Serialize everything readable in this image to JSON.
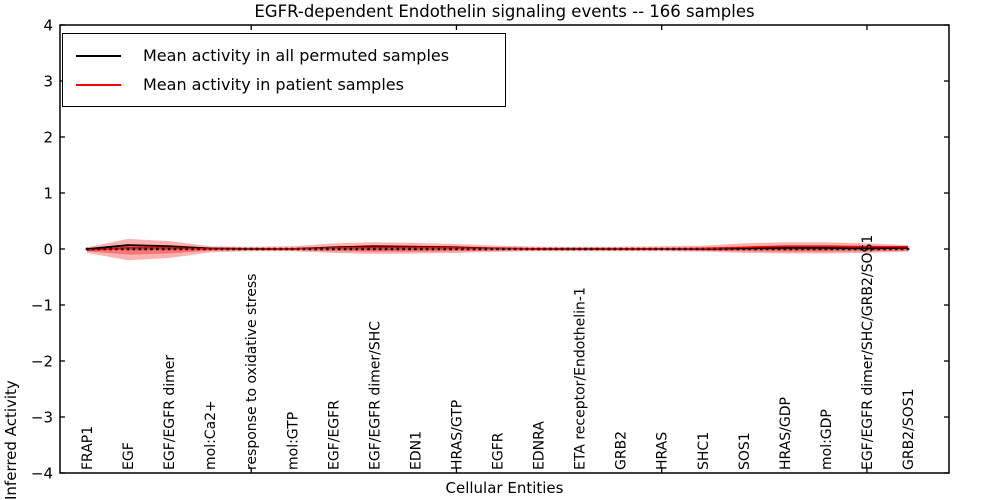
{
  "title": "EGFR-dependent Endothelin signaling events -- 166 samples",
  "legend": {
    "items": [
      {
        "label": "Mean activity in all permuted samples",
        "color": "#000000"
      },
      {
        "label": "Mean activity in patient samples",
        "color": "#ff0000"
      }
    ],
    "position": "upper left"
  },
  "chart_data": {
    "type": "line",
    "title": "EGFR-dependent Endothelin signaling events -- 166 samples",
    "xlabel": "Cellular Entities",
    "ylabel": "Inferred Activity",
    "ylim": [
      -4,
      4
    ],
    "grid": false,
    "yticks": [
      {
        "label": "4",
        "value": 4
      },
      {
        "label": "3",
        "value": 3
      },
      {
        "label": "2",
        "value": 2
      },
      {
        "label": "1",
        "value": 1
      },
      {
        "label": "0",
        "value": 0
      },
      {
        "label": "−1",
        "value": -1
      },
      {
        "label": "−2",
        "value": -2
      },
      {
        "label": "−3",
        "value": -3
      },
      {
        "label": "−4",
        "value": -4
      }
    ],
    "categories": [
      "FRAP1",
      "EGF",
      "EGF/EGFR dimer",
      "mol:Ca2+",
      "response to oxidative stress",
      "mol:GTP",
      "EGF/EGFR",
      "EGF/EGFR dimer/SHC",
      "EDN1",
      "HRAS/GTP",
      "EGFR",
      "EDNRA",
      "ETA receptor/Endothelin-1",
      "GRB2",
      "HRAS",
      "SHC1",
      "SOS1",
      "HRAS/GDP",
      "mol:GDP",
      "EGF/EGFR dimer/SHC/GRB2/SOS1",
      "GRB2/SOS1"
    ],
    "points_per_category_gap": 7,
    "points_total": 141,
    "xtick_point_indices": [
      28,
      63,
      98,
      133
    ],
    "series": [
      {
        "name": "Mean activity in all permuted samples",
        "color": "#000000",
        "values": [
          0.0,
          0.07,
          0.05,
          0.01,
          0.0,
          0.0,
          0.03,
          0.05,
          0.04,
          0.03,
          0.01,
          0.0,
          0.0,
          0.0,
          0.0,
          0.0,
          0.01,
          0.02,
          0.02,
          0.01,
          0.02
        ]
      },
      {
        "name": "Mean activity in patient samples",
        "color": "#ff0000",
        "values": [
          -0.02,
          0.02,
          0.02,
          0.0,
          0.0,
          0.0,
          0.02,
          0.03,
          0.03,
          0.02,
          0.01,
          0.0,
          0.0,
          0.0,
          0.0,
          0.01,
          0.03,
          0.05,
          0.05,
          0.04,
          0.04
        ]
      }
    ],
    "bands": [
      {
        "name": "patient-spread-outer",
        "color": "#ff0000",
        "opacity": 0.3,
        "upper": [
          0.03,
          0.18,
          0.14,
          0.05,
          0.04,
          0.05,
          0.1,
          0.12,
          0.11,
          0.09,
          0.06,
          0.04,
          0.04,
          0.04,
          0.05,
          0.06,
          0.1,
          0.12,
          0.12,
          0.1,
          0.07
        ],
        "lower": [
          -0.07,
          -0.2,
          -0.16,
          -0.06,
          -0.04,
          -0.04,
          -0.07,
          -0.09,
          -0.08,
          -0.07,
          -0.05,
          -0.04,
          -0.04,
          -0.04,
          -0.04,
          -0.05,
          -0.07,
          -0.08,
          -0.08,
          -0.07,
          -0.05
        ]
      },
      {
        "name": "patient-spread-inner",
        "color": "#ff0000",
        "opacity": 0.35,
        "upper": [
          0.01,
          0.09,
          0.07,
          0.03,
          0.02,
          0.02,
          0.05,
          0.07,
          0.06,
          0.05,
          0.03,
          0.02,
          0.02,
          0.02,
          0.02,
          0.03,
          0.05,
          0.07,
          0.07,
          0.06,
          0.05
        ],
        "lower": [
          -0.04,
          -0.1,
          -0.08,
          -0.03,
          -0.02,
          -0.02,
          -0.04,
          -0.05,
          -0.05,
          -0.04,
          -0.03,
          -0.02,
          -0.02,
          -0.02,
          -0.02,
          -0.03,
          -0.04,
          -0.05,
          -0.05,
          -0.04,
          -0.03
        ]
      },
      {
        "name": "permuted-spread",
        "color": "#000000",
        "opacity": 0.25,
        "upper": [
          0.01,
          0.08,
          0.06,
          0.02,
          0.01,
          0.01,
          0.04,
          0.06,
          0.05,
          0.04,
          0.02,
          0.01,
          0.01,
          0.01,
          0.01,
          0.01,
          0.02,
          0.03,
          0.03,
          0.02,
          0.03
        ],
        "lower": [
          -0.01,
          -0.02,
          -0.02,
          -0.01,
          -0.01,
          -0.01,
          -0.01,
          -0.02,
          -0.02,
          -0.01,
          -0.01,
          -0.01,
          -0.01,
          -0.01,
          -0.01,
          -0.01,
          -0.01,
          -0.02,
          -0.02,
          -0.01,
          -0.01
        ]
      }
    ],
    "marker_baseline": {
      "value": 0,
      "marker": "square",
      "color": "#111111"
    }
  }
}
